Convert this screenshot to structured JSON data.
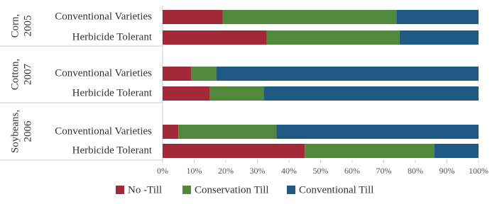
{
  "chart_data": {
    "type": "stacked-barh",
    "groups": [
      {
        "label": [
          "Corn,",
          "2005"
        ]
      },
      {
        "label": [
          "Cotton,",
          "2007"
        ]
      },
      {
        "label": [
          "Soybeans,",
          "2006"
        ]
      }
    ],
    "categories": [
      "Conventional Varieties",
      "Herbicide Tolerant",
      "Conventional Varieties",
      "Herbicide Tolerant",
      "Conventional Varieties",
      "Herbicide Tolerant"
    ],
    "series": [
      {
        "name": "No -Till",
        "color": "#a3293a",
        "values": [
          19,
          33,
          9,
          15,
          5,
          45
        ]
      },
      {
        "name": "Conservation Till",
        "color": "#4f8a3c",
        "values": [
          55,
          42,
          8,
          17,
          31,
          41
        ]
      },
      {
        "name": "Conventional Till",
        "color": "#1f5a85",
        "values": [
          26,
          25,
          83,
          68,
          64,
          14
        ]
      }
    ],
    "xlim": [
      0,
      100
    ],
    "xticks": [
      {
        "value": 0,
        "label": "0%"
      },
      {
        "value": 10,
        "label": "10%"
      },
      {
        "value": 20,
        "label": "20%"
      },
      {
        "value": 30,
        "label": "30%"
      },
      {
        "value": 40,
        "label": "40%"
      },
      {
        "value": 50,
        "label": "50%"
      },
      {
        "value": 60,
        "label": "60%"
      },
      {
        "value": 70,
        "label": "70%"
      },
      {
        "value": 80,
        "label": "80%"
      },
      {
        "value": 90,
        "label": "90%"
      },
      {
        "value": 100,
        "label": "100%"
      }
    ],
    "legend": "bottom"
  }
}
